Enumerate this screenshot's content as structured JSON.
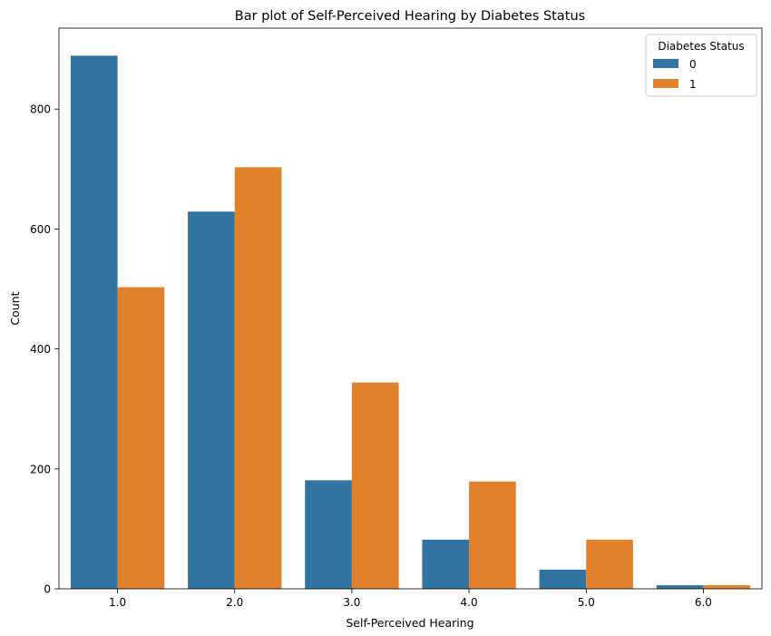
{
  "chart_data": {
    "type": "bar",
    "title": "Bar plot of Self-Perceived Hearing by Diabetes Status",
    "xlabel": "Self-Perceived Hearing",
    "ylabel": "Count",
    "categories": [
      "1.0",
      "2.0",
      "3.0",
      "4.0",
      "5.0",
      "6.0"
    ],
    "series": [
      {
        "name": "0",
        "color": "#3274a1",
        "values": [
          889,
          629,
          181,
          82,
          32,
          6
        ]
      },
      {
        "name": "1",
        "color": "#e1812c",
        "values": [
          503,
          703,
          344,
          179,
          82,
          6
        ]
      }
    ],
    "ylim": [
      0,
      935
    ],
    "yticks": [
      0,
      200,
      400,
      600,
      800
    ],
    "grid": false,
    "legend": {
      "title": "Diabetes Status",
      "placement": "top-right"
    }
  }
}
